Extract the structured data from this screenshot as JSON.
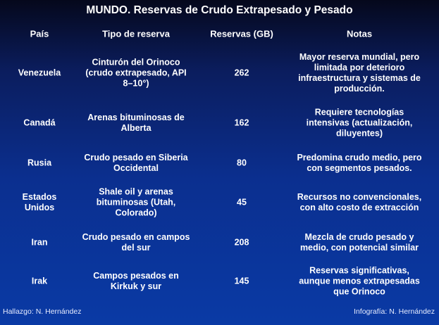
{
  "title": "MUNDO. Reservas de Crudo Extrapesado y Pesado",
  "headers": [
    "País",
    "Tipo de reserva",
    "Reservas (GB)",
    "Notas"
  ],
  "rows": [
    {
      "pais": "Venezuela",
      "tipo": [
        "Cinturón del Orinoco",
        "(crudo extrapesado, API",
        "8–10°)"
      ],
      "reservas": "262",
      "notas": [
        "Mayor reserva mundial, pero",
        "limitada por deterioro",
        "infraestructura y sistemas de",
        "producción."
      ]
    },
    {
      "pais": "Canadá",
      "tipo": [
        "Arenas bituminosas de",
        "Alberta"
      ],
      "reservas": "162",
      "notas": [
        "Requiere tecnologías",
        "intensivas (actualización,",
        "diluyentes)"
      ]
    },
    {
      "pais": "Rusia",
      "tipo": [
        "Crudo pesado en Siberia",
        "Occidental"
      ],
      "reservas": "80",
      "notas": [
        "Predomina crudo medio, pero",
        "con segmentos pesados."
      ]
    },
    {
      "pais": [
        "Estados",
        "Unidos"
      ],
      "tipo": [
        "Shale oil y arenas",
        "bituminosas (Utah,",
        "Colorado)"
      ],
      "reservas": "45",
      "notas": [
        "Recursos no convencionales,",
        "con alto costo de extracción"
      ]
    },
    {
      "pais": "Iran",
      "tipo": [
        "Crudo pesado en campos",
        "del sur"
      ],
      "reservas": "208",
      "notas": [
        "Mezcla de crudo pesado y",
        "medio, con potencial similar"
      ]
    },
    {
      "pais": "Irak",
      "tipo": [
        "Campos pesados en",
        "Kirkuk y sur"
      ],
      "reservas": "145",
      "notas": [
        "Reservas significativas,",
        "aunque menos extrapesadas",
        "que Orinoco"
      ]
    }
  ],
  "footer": {
    "left": "Hallazgo: N. Hernández",
    "right": "Infografía: N. Hernández"
  }
}
